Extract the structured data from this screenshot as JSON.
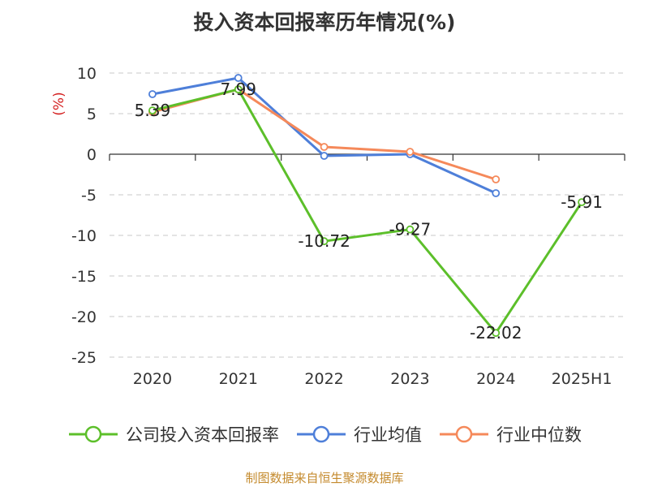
{
  "chart_data": {
    "type": "line",
    "title": "投入资本回报率历年情况(%)",
    "ylabel": "(%)",
    "ylim": [
      -25,
      10
    ],
    "yticks": [
      10,
      5,
      0,
      -5,
      -10,
      -15,
      -20,
      -25
    ],
    "categories": [
      "2020",
      "2021",
      "2022",
      "2023",
      "2024",
      "2025H1"
    ],
    "grid": true,
    "legend_position": "bottom",
    "series": [
      {
        "name": "公司投入资本回报率",
        "color": "#5cbf2a",
        "values": [
          5.39,
          7.99,
          -10.72,
          -9.27,
          -22.02,
          -5.91
        ],
        "labels": [
          "5.39",
          "7.99",
          "-10.72",
          "-9.27",
          "-22.02",
          "-5.91"
        ]
      },
      {
        "name": "行业均值",
        "color": "#4e7fd9",
        "values": [
          7.4,
          9.4,
          -0.2,
          0.0,
          -4.8,
          null
        ]
      },
      {
        "name": "行业中位数",
        "color": "#f5895a",
        "values": [
          5.2,
          8.0,
          0.9,
          0.3,
          -3.1,
          null
        ]
      }
    ]
  },
  "source": "制图数据来自恒生聚源数据库"
}
